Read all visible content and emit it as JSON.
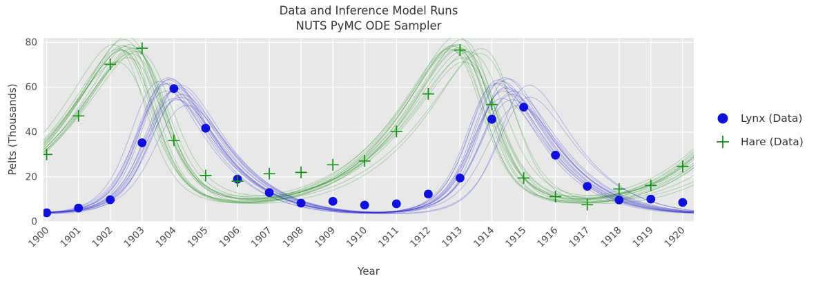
{
  "chart_data": {
    "type": "line",
    "title_lines": [
      "Data and Inference Model Runs",
      "NUTS PyMC ODE Sampler"
    ],
    "xlabel": "Year",
    "ylabel": "Pelts (Thousands)",
    "x": [
      1900,
      1901,
      1902,
      1903,
      1904,
      1905,
      1906,
      1907,
      1908,
      1909,
      1910,
      1911,
      1912,
      1913,
      1914,
      1915,
      1916,
      1917,
      1918,
      1919,
      1920
    ],
    "series": [
      {
        "name": "Lynx (Data)",
        "marker": "circle",
        "color": "#1010dd",
        "values": [
          4.0,
          6.1,
          9.8,
          35.2,
          59.4,
          41.7,
          19.0,
          13.0,
          8.3,
          9.1,
          7.4,
          8.0,
          12.3,
          19.5,
          45.7,
          51.1,
          29.7,
          15.8,
          9.7,
          10.1,
          8.6
        ]
      },
      {
        "name": "Hare (Data)",
        "marker": "plus",
        "color": "#119111",
        "values": [
          30.0,
          47.2,
          70.2,
          77.4,
          36.3,
          20.6,
          18.1,
          21.4,
          22.0,
          25.4,
          27.1,
          40.3,
          57.0,
          76.6,
          52.3,
          19.5,
          11.2,
          7.6,
          14.6,
          16.2,
          24.7
        ]
      }
    ],
    "xticks": [
      1900,
      1901,
      1902,
      1903,
      1904,
      1905,
      1906,
      1907,
      1908,
      1909,
      1910,
      1911,
      1912,
      1913,
      1914,
      1915,
      1916,
      1917,
      1918,
      1919,
      1920
    ],
    "yticks": [
      0,
      20,
      40,
      60,
      80
    ],
    "xlim": [
      1899.9,
      1920.35
    ],
    "ylim": [
      0,
      82
    ],
    "grid": true,
    "legend_position": "right",
    "plot_background": "#e8e8e8",
    "grid_color": "#ffffff",
    "model_runs": {
      "description": "posterior ODE sample trajectories (Lotka-Volterra)",
      "n": 16,
      "seed": 7,
      "line_width": 1.1,
      "line_alpha": 0.24,
      "colors": {
        "hare_line": "#008000",
        "lynx_line": "#1a1acc"
      },
      "base_params": {
        "alpha": 0.52,
        "beta": 0.026,
        "gamma": 0.84,
        "delta": 0.026,
        "hare0": 34.9,
        "lynx0": 3.9
      },
      "jitter_sd": {
        "alpha": 0.03,
        "beta": 0.03,
        "gamma": 0.025,
        "delta": 0.025,
        "hare0": 0.06,
        "lynx0": 0.08
      }
    }
  }
}
